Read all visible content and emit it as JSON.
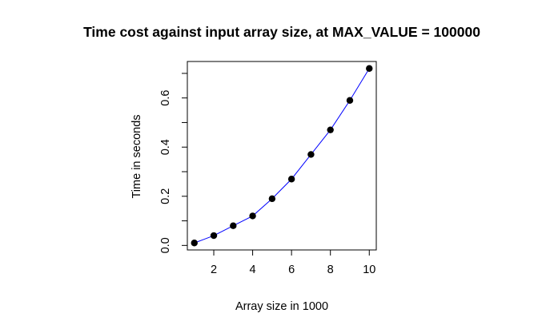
{
  "chart_data": {
    "type": "line",
    "title": "Time cost against input array size, at MAX_VALUE = 100000",
    "xlabel": "Array size in 1000",
    "ylabel": "Time in seconds",
    "xlim": [
      1,
      10
    ],
    "ylim": [
      0.01,
      0.72
    ],
    "x_ticks": [
      2,
      4,
      6,
      8,
      10
    ],
    "y_ticks": [
      0.0,
      0.2,
      0.4,
      0.6
    ],
    "x_tick_labels": [
      "2",
      "4",
      "6",
      "8",
      "10"
    ],
    "y_tick_labels": [
      "0.0",
      "0.2",
      "0.4",
      "0.6"
    ],
    "grid": false,
    "series": [
      {
        "x": [
          1,
          2,
          3,
          4,
          5,
          6,
          7,
          8,
          9,
          10
        ],
        "values": [
          0.01,
          0.04,
          0.08,
          0.12,
          0.19,
          0.27,
          0.37,
          0.47,
          0.59,
          0.72
        ],
        "line_color": "#0000ff",
        "marker_color": "#000000"
      }
    ]
  }
}
